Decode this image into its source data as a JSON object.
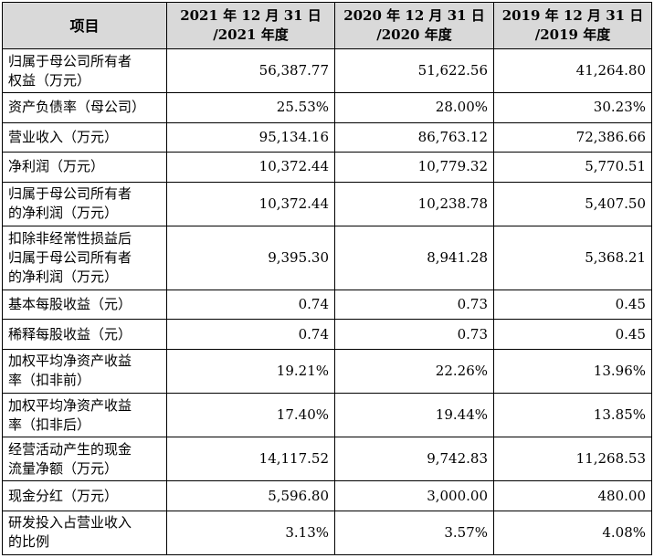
{
  "table": {
    "headers": [
      [
        "项目"
      ],
      [
        "2021 年 12 月 31 日",
        "/2021 年度"
      ],
      [
        "2020 年 12 月 31 日",
        "/2020 年度"
      ],
      [
        "2019 年 12 月 31 日",
        "/2019 年度"
      ]
    ],
    "rows": [
      {
        "label": [
          "归属于母公司所有者",
          "权益（万元）"
        ],
        "values": [
          "56,387.77",
          "51,622.56",
          "41,264.80"
        ]
      },
      {
        "label": [
          "资产负债率（母公司）"
        ],
        "values": [
          "25.53%",
          "28.00%",
          "30.23%"
        ]
      },
      {
        "label": [
          "营业收入（万元）"
        ],
        "values": [
          "95,134.16",
          "86,763.12",
          "72,386.66"
        ]
      },
      {
        "label": [
          "净利润（万元）"
        ],
        "values": [
          "10,372.44",
          "10,779.32",
          "5,770.51"
        ]
      },
      {
        "label": [
          "归属于母公司所有者",
          "的净利润（万元）"
        ],
        "values": [
          "10,372.44",
          "10,238.78",
          "5,407.50"
        ]
      },
      {
        "label": [
          "扣除非经常性损益后",
          "归属于母公司所有者",
          "的净利润（万元）"
        ],
        "values": [
          "9,395.30",
          "8,941.28",
          "5,368.21"
        ]
      },
      {
        "label": [
          "基本每股收益（元）"
        ],
        "values": [
          "0.74",
          "0.73",
          "0.45"
        ]
      },
      {
        "label": [
          "稀释每股收益（元）"
        ],
        "values": [
          "0.74",
          "0.73",
          "0.45"
        ]
      },
      {
        "label": [
          "加权平均净资产收益",
          "率（扣非前）"
        ],
        "values": [
          "19.21%",
          "22.26%",
          "13.96%"
        ]
      },
      {
        "label": [
          "加权平均净资产收益",
          "率（扣非后）"
        ],
        "values": [
          "17.40%",
          "19.44%",
          "13.85%"
        ]
      },
      {
        "label": [
          "经营活动产生的现金",
          "流量净额（万元）"
        ],
        "values": [
          "14,117.52",
          "9,742.83",
          "11,268.53"
        ]
      },
      {
        "label": [
          "现金分红（万元）"
        ],
        "values": [
          "5,596.80",
          "3,000.00",
          "480.00"
        ]
      },
      {
        "label": [
          "研发投入占营业收入",
          "的比例"
        ],
        "values": [
          "3.13%",
          "3.57%",
          "4.08%"
        ]
      }
    ]
  }
}
